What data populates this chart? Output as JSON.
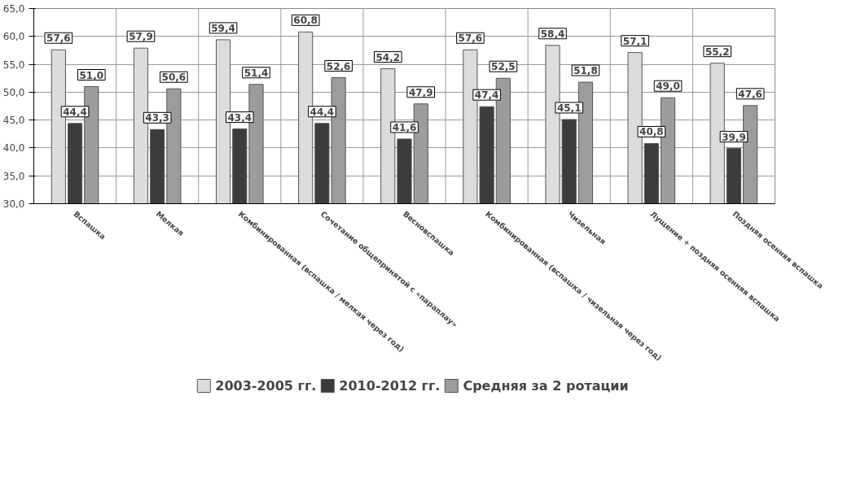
{
  "chart_data": {
    "type": "bar",
    "categories": [
      "Вспашка",
      "Мелкая",
      "Комбинированная (вспашка / мелкая через год)",
      "Сочетание общепринятой с «параплау»",
      "Весновспашка",
      "Комбинированная (вспашка / чизельная через год)",
      "Чизельная",
      "Лущение + поздняя осенняя вспашка",
      "Поздняя осенняя вспашка"
    ],
    "series": [
      {
        "name": "2003-2005 гг.",
        "color": "#dcdcdc",
        "values": [
          57.6,
          57.9,
          59.4,
          60.8,
          54.2,
          57.6,
          58.4,
          57.1,
          55.2
        ],
        "value_labels": [
          "57,6",
          "57,9",
          "59,4",
          "60,8",
          "54,2",
          "57,6",
          "58,4",
          "57,1",
          "55,2"
        ]
      },
      {
        "name": "2010-2012 гг.",
        "color": "#3c3c3c",
        "values": [
          44.4,
          43.3,
          43.4,
          44.4,
          41.6,
          47.4,
          45.1,
          40.8,
          39.9
        ],
        "value_labels": [
          "44,4",
          "43,3",
          "43,4",
          "44,4",
          "41,6",
          "47,4",
          "45,1",
          "40,8",
          "39,9"
        ]
      },
      {
        "name": "Средняя за 2 ротации",
        "color": "#9c9c9c",
        "values": [
          51.0,
          50.6,
          51.4,
          52.6,
          47.9,
          52.5,
          51.8,
          49.0,
          47.6
        ],
        "value_labels": [
          "51,0",
          "50,6",
          "51,4",
          "52,6",
          "47,9",
          "52,5",
          "51,8",
          "49,0",
          "47,6"
        ]
      }
    ],
    "ylim": [
      30,
      65
    ],
    "yticks": [
      {
        "value": 30,
        "label": "30,0"
      },
      {
        "value": 35,
        "label": "35,0"
      },
      {
        "value": 40,
        "label": "40,0"
      },
      {
        "value": 45,
        "label": "45,0"
      },
      {
        "value": 50,
        "label": "50,0"
      },
      {
        "value": 55,
        "label": "55,0"
      },
      {
        "value": 60,
        "label": "60,0"
      },
      {
        "value": 65,
        "label": "65,0"
      }
    ],
    "grid": true,
    "legend": "bottom"
  }
}
